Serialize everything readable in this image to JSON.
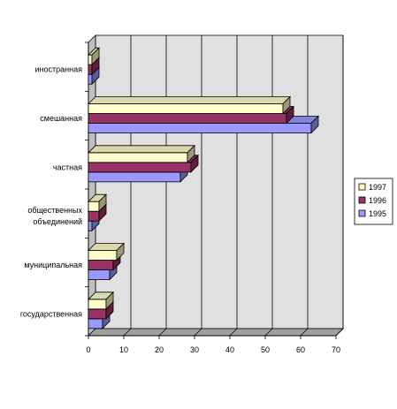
{
  "chart_data": {
    "type": "bar",
    "orientation": "horizontal",
    "three_d": true,
    "categories": [
      "государственная",
      "муниципальная",
      "общественных объединений",
      "частная",
      "смешанная",
      "иностранная"
    ],
    "category_label_lines": [
      [
        "государственная"
      ],
      [
        "муниципальная"
      ],
      [
        "общественных",
        "объединений"
      ],
      [
        "частная"
      ],
      [
        "смешанная"
      ],
      [
        "иностранная"
      ]
    ],
    "series": [
      {
        "name": "1997",
        "color": "#ffffcc",
        "values": [
          5,
          8,
          3,
          28,
          55,
          1
        ]
      },
      {
        "name": "1996",
        "color": "#993366",
        "values": [
          5,
          7,
          3,
          29,
          56,
          1
        ]
      },
      {
        "name": "1995",
        "color": "#9999ff",
        "values": [
          4,
          6,
          1,
          26,
          63,
          1
        ]
      }
    ],
    "xlim": [
      0,
      70
    ],
    "xticks": [
      0,
      10,
      20,
      30,
      40,
      50,
      60,
      70
    ],
    "grid": true,
    "legend_position": "right",
    "wall_color": "#e0e0e0"
  }
}
